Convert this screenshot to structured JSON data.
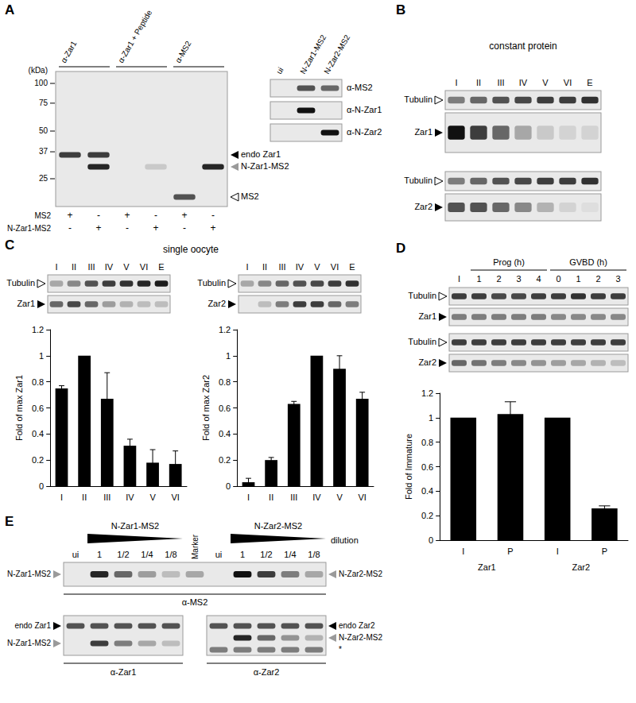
{
  "figure": {
    "panel_labels": [
      "A",
      "B",
      "C",
      "D",
      "E"
    ],
    "A": {
      "columns": [
        "α-Zar1",
        "α-Zar1 + Peptide",
        "α-MS2"
      ],
      "kda_title": "(kDa)",
      "kda_markers": [
        100,
        75,
        50,
        37,
        25
      ],
      "band_rows": [
        {
          "label": "endo Zar1",
          "marker": "filled",
          "bands": [
            0.8,
            0.8,
            0,
            0,
            0,
            0
          ]
        },
        {
          "label": "N-Zar1-MS2",
          "marker": "gray",
          "bands": [
            0,
            0.9,
            0,
            0.15,
            0,
            0.9
          ]
        },
        {
          "label": "MS2",
          "marker": "open",
          "bands": [
            0,
            0,
            0,
            0,
            0.7,
            0
          ]
        }
      ],
      "conditions": [
        {
          "label": "MS2",
          "signs": [
            "+",
            "-",
            "+",
            "-",
            "+",
            "-"
          ]
        },
        {
          "label": "N-Zar1-MS2",
          "signs": [
            "-",
            "+",
            "-",
            "+",
            "-",
            "+"
          ]
        }
      ],
      "inset": {
        "lanes": [
          "ui",
          "N-Zar1-MS2",
          "N-Zar2-MS2"
        ],
        "rows": [
          {
            "label": "α-MS2",
            "bands": [
              0,
              0.7,
              0.6
            ]
          },
          {
            "label": "α-N-Zar1",
            "bands": [
              0,
              1,
              0
            ]
          },
          {
            "label": "α-N-Zar2",
            "bands": [
              0,
              0,
              1
            ]
          }
        ]
      }
    },
    "B": {
      "title": "constant protein",
      "lanes": [
        "I",
        "II",
        "III",
        "IV",
        "V",
        "VI",
        "E"
      ],
      "rows": [
        {
          "label": "Tubulin",
          "marker": "open",
          "bands": [
            0.5,
            0.6,
            0.7,
            0.75,
            0.8,
            0.8,
            0.85
          ]
        },
        {
          "label": "Zar1",
          "marker": "filled",
          "bands": [
            1,
            0.8,
            0.6,
            0.3,
            0.15,
            0.1,
            0.1
          ]
        },
        {
          "label": "Tubulin",
          "marker": "open",
          "bands": [
            0.5,
            0.6,
            0.7,
            0.75,
            0.8,
            0.8,
            0.85
          ]
        },
        {
          "label": "Zar2",
          "marker": "filled",
          "bands": [
            0.7,
            0.7,
            0.6,
            0.45,
            0.25,
            0.1,
            0.05
          ]
        }
      ]
    },
    "C": {
      "title": "single oocyte",
      "blots": [
        {
          "lanes": [
            "I",
            "II",
            "III",
            "IV",
            "V",
            "VI",
            "E"
          ],
          "rows": [
            {
              "label": "Tubulin",
              "marker": "open",
              "bands": [
                0.3,
                0.45,
                0.7,
                0.8,
                0.85,
                0.9,
                0.95
              ]
            },
            {
              "label": "Zar1",
              "marker": "filled",
              "bands": [
                0.6,
                0.75,
                0.6,
                0.35,
                0.25,
                0.2,
                0.2
              ]
            }
          ]
        },
        {
          "lanes": [
            "I",
            "II",
            "III",
            "IV",
            "V",
            "VI",
            "E"
          ],
          "rows": [
            {
              "label": "Tubulin",
              "marker": "open",
              "bands": [
                0.3,
                0.45,
                0.6,
                0.7,
                0.75,
                0.8,
                0.85
              ]
            },
            {
              "label": "Zar2",
              "marker": "filled",
              "bands": [
                0,
                0.2,
                0.5,
                0.8,
                0.8,
                0.6,
                0.5
              ]
            }
          ]
        }
      ]
    },
    "D": {
      "lane_groups": [
        {
          "label": null,
          "lanes": [
            "I"
          ]
        },
        {
          "label": "Prog (h)",
          "lanes": [
            "1",
            "2",
            "3",
            "4"
          ]
        },
        {
          "label": "GVBD (h)",
          "lanes": [
            "0",
            "1",
            "2",
            "3"
          ]
        }
      ],
      "rows": [
        {
          "label": "Tubulin",
          "marker": "open",
          "bands": [
            0.8,
            0.8,
            0.75,
            0.75,
            0.8,
            0.8,
            0.85,
            0.8,
            0.8
          ]
        },
        {
          "label": "Zar1",
          "marker": "filled",
          "bands": [
            0.5,
            0.5,
            0.5,
            0.5,
            0.5,
            0.45,
            0.45,
            0.45,
            0.45
          ]
        },
        {
          "label": "Tubulin",
          "marker": "open",
          "bands": [
            0.8,
            0.8,
            0.8,
            0.8,
            0.8,
            0.8,
            0.8,
            0.8,
            0.8
          ]
        },
        {
          "label": "Zar2",
          "marker": "filled",
          "bands": [
            0.6,
            0.55,
            0.5,
            0.45,
            0.4,
            0.35,
            0.3,
            0.25,
            0.2
          ]
        }
      ]
    },
    "E": {
      "dilution_label": "dilution",
      "marker_lane": "Marker",
      "top": {
        "antibody": "α-MS2",
        "left_label": "N-Zar1-MS2",
        "right_label": "N-Zar2-MS2",
        "marker_band": 0.3
      },
      "constructs": [
        {
          "label": "N-Zar1-MS2",
          "lanes": [
            "ui",
            "1",
            "1/2",
            "1/4",
            "1/8"
          ],
          "top_bands": [
            0,
            0.9,
            0.6,
            0.35,
            0.2
          ],
          "antibody": "α-Zar1",
          "rows": [
            {
              "label": "endo Zar1",
              "marker": "filled",
              "bands": [
                0.7,
                0.7,
                0.7,
                0.7,
                0.7
              ]
            },
            {
              "label": "N-Zar1-MS2",
              "marker": "gray",
              "bands": [
                0,
                0.8,
                0.5,
                0.3,
                0.2
              ]
            }
          ]
        },
        {
          "label": "N-Zar2-MS2",
          "lanes": [
            "ui",
            "1",
            "1/2",
            "1/4",
            "1/8"
          ],
          "top_bands": [
            0,
            1,
            0.8,
            0.5,
            0.3
          ],
          "antibody": "α-Zar2",
          "rows": [
            {
              "label": "endo Zar2",
              "marker": "filled",
              "bands": [
                0.7,
                0.7,
                0.7,
                0.7,
                0.7
              ]
            },
            {
              "label": "N-Zar2-MS2",
              "marker": "gray",
              "bands": [
                0,
                0.9,
                0.6,
                0.4,
                0.25
              ]
            },
            {
              "label": "*",
              "bands": [
                0.5,
                0.5,
                0.5,
                0.5,
                0.5
              ]
            }
          ]
        }
      ]
    }
  },
  "chart_data": [
    {
      "type": "bar",
      "categories": [
        "I",
        "II",
        "III",
        "IV",
        "V",
        "VI"
      ],
      "values": [
        0.75,
        1,
        0.67,
        0.31,
        0.18,
        0.17
      ],
      "errors": [
        0.02,
        0,
        0.2,
        0.05,
        0.1,
        0.1
      ],
      "color": "#000000",
      "ylabel": "Fold of max Zar1",
      "ylim": [
        0,
        1.2
      ],
      "yticks": [
        0,
        0.2,
        0.4,
        0.6,
        0.8,
        1,
        1.2
      ],
      "grid": false
    },
    {
      "type": "bar",
      "categories": [
        "I",
        "II",
        "III",
        "IV",
        "V",
        "VI"
      ],
      "values": [
        0.03,
        0.2,
        0.63,
        1,
        0.9,
        0.67
      ],
      "errors": [
        0.03,
        0.02,
        0.02,
        0,
        0.1,
        0.05
      ],
      "color": "#000000",
      "ylabel": "Fold of max Zar2",
      "ylim": [
        0,
        1.2
      ],
      "yticks": [
        0,
        0.2,
        0.4,
        0.6,
        0.8,
        1,
        1.2
      ],
      "grid": false
    },
    {
      "type": "bar",
      "categories": [
        "I",
        "P",
        "I",
        "P"
      ],
      "groups": [
        "Zar1",
        "Zar2"
      ],
      "values": [
        1,
        1.03,
        1,
        0.26
      ],
      "errors": [
        0,
        0.1,
        0,
        0.02
      ],
      "color": "#000000",
      "ylabel": "Fold of Immature",
      "ylim": [
        0,
        1.2
      ],
      "yticks": [
        0,
        0.2,
        0.4,
        0.6,
        0.8,
        1,
        1.2
      ],
      "grid": false
    }
  ]
}
